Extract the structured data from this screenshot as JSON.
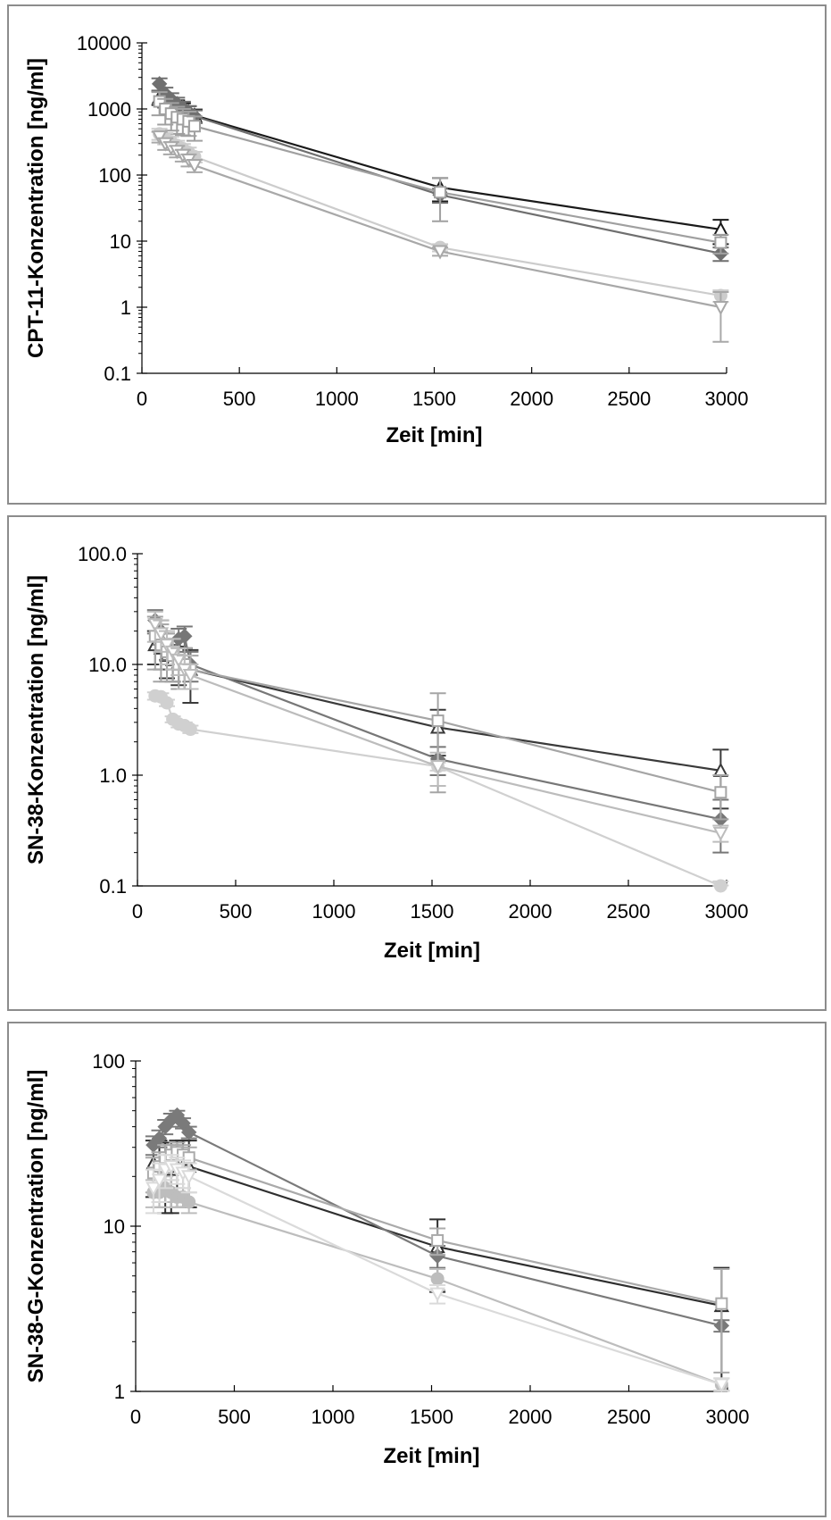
{
  "chart_data": [
    {
      "type": "line",
      "yscale": "log",
      "xlabel": "Zeit [min]",
      "ylabel": "CPT-11-Konzentration [ng/ml]",
      "xlim": [
        0,
        3000
      ],
      "ylim": [
        0.1,
        10000
      ],
      "xticks": [
        "0",
        "500",
        "1000",
        "1500",
        "2000",
        "2500",
        "3000"
      ],
      "yticks": [
        "0.1",
        "1",
        "10",
        "100",
        "1000",
        "10000"
      ],
      "ytick_values": [
        0.1,
        1,
        10,
        100,
        1000,
        10000
      ],
      "grid": false,
      "legend": "none",
      "series": [
        {
          "marker": "triangle",
          "color": "#1a1a1a",
          "x": [
            90,
            120,
            150,
            180,
            210,
            240,
            270,
            1530,
            2970
          ],
          "y": [
            1500,
            1350,
            1200,
            1100,
            1000,
            900,
            800,
            65,
            15
          ],
          "err": [
            350,
            300,
            280,
            250,
            220,
            200,
            180,
            25,
            6
          ]
        },
        {
          "marker": "diamond",
          "color": "#6f6f6f",
          "x": [
            90,
            120,
            150,
            180,
            210,
            240,
            270,
            1530,
            2970
          ],
          "y": [
            2400,
            1700,
            1400,
            1200,
            1050,
            900,
            780,
            50,
            6.5
          ],
          "err": [
            500,
            400,
            330,
            280,
            240,
            200,
            170,
            12,
            1.5
          ]
        },
        {
          "marker": "square",
          "color": "#a0a0a0",
          "x": [
            90,
            120,
            150,
            180,
            210,
            240,
            270,
            1530,
            2970
          ],
          "y": [
            1300,
            1000,
            850,
            750,
            700,
            650,
            550,
            55,
            9.5
          ],
          "err": [
            500,
            420,
            380,
            330,
            300,
            260,
            220,
            35,
            3
          ]
        },
        {
          "marker": "circle",
          "color": "#cccccc",
          "x": [
            90,
            120,
            150,
            180,
            210,
            240,
            270,
            1530,
            2970
          ],
          "y": [
            420,
            360,
            320,
            280,
            250,
            220,
            190,
            8,
            1.5
          ],
          "err": [
            80,
            70,
            60,
            50,
            45,
            40,
            35,
            1,
            0.3
          ]
        },
        {
          "marker": "triangle-down",
          "color": "#a8a8a8",
          "x": [
            90,
            120,
            150,
            180,
            210,
            240,
            270,
            1530,
            2970
          ],
          "y": [
            380,
            300,
            260,
            230,
            200,
            170,
            140,
            7,
            1
          ],
          "err": [
            70,
            60,
            55,
            45,
            40,
            35,
            30,
            1,
            0.7
          ]
        }
      ]
    },
    {
      "type": "line",
      "yscale": "log",
      "xlabel": "Zeit [min]",
      "ylabel": "SN-38-Konzentration [ng/ml]",
      "xlim": [
        0,
        3000
      ],
      "ylim": [
        0.1,
        100
      ],
      "xticks": [
        "0",
        "500",
        "1000",
        "1500",
        "2000",
        "2500",
        "3000"
      ],
      "yticks": [
        "0.1",
        "1.0",
        "10.0",
        "100.0"
      ],
      "ytick_values": [
        0.1,
        1,
        10,
        100
      ],
      "grid": false,
      "legend": "none",
      "series": [
        {
          "marker": "triangle",
          "color": "#3a3a3a",
          "x": [
            90,
            120,
            150,
            180,
            210,
            240,
            270,
            1530,
            2970
          ],
          "y": [
            15,
            14,
            12,
            11,
            10.5,
            10,
            9,
            2.7,
            1.1
          ],
          "err": [
            5,
            5,
            4.5,
            4,
            4,
            4,
            4.5,
            1.2,
            0.6
          ]
        },
        {
          "marker": "diamond",
          "color": "#777777",
          "x": [
            90,
            120,
            150,
            180,
            210,
            240,
            270,
            1530,
            2970
          ],
          "y": [
            25,
            20,
            15,
            13,
            17,
            18,
            10,
            1.4,
            0.4
          ],
          "err": [
            6,
            5,
            4,
            4,
            4,
            4,
            3,
            0.4,
            0.2
          ]
        },
        {
          "marker": "square",
          "color": "#a5a5a5",
          "x": [
            90,
            120,
            150,
            180,
            210,
            240,
            270,
            1530,
            2970
          ],
          "y": [
            18,
            15,
            13,
            12,
            10,
            10,
            9,
            3.1,
            0.7
          ],
          "err": [
            9,
            8,
            6,
            5,
            4,
            4,
            3,
            2.4,
            0.3
          ]
        },
        {
          "marker": "circle",
          "color": "#d0d0d0",
          "x": [
            90,
            120,
            150,
            180,
            210,
            240,
            270,
            1530,
            2970
          ],
          "y": [
            5.2,
            5.1,
            4.5,
            3.2,
            2.9,
            2.8,
            2.6,
            1.2,
            0.1
          ],
          "err": [
            0.4,
            0.4,
            0.3,
            0.2,
            0.2,
            0.2,
            0.2,
            0.1,
            0.01
          ]
        },
        {
          "marker": "triangle-down",
          "color": "#bcbcbc",
          "x": [
            90,
            120,
            150,
            180,
            210,
            240,
            270,
            1530,
            2970
          ],
          "y": [
            23,
            19,
            15,
            13,
            11,
            9,
            8,
            1.2,
            0.3
          ],
          "err": [
            7,
            6,
            5,
            4,
            3,
            3,
            2,
            0.4,
            0.05
          ]
        }
      ]
    },
    {
      "type": "line",
      "yscale": "log",
      "xlabel": "Zeit [min]",
      "ylabel": "SN-38-G-Konzentration [ng/ml]",
      "xlim": [
        0,
        3000
      ],
      "ylim": [
        1,
        100
      ],
      "xticks": [
        "0",
        "500",
        "1000",
        "1500",
        "2000",
        "2500",
        "3000"
      ],
      "yticks": [
        "1",
        "10",
        "100"
      ],
      "ytick_values": [
        1,
        10,
        100
      ],
      "grid": false,
      "legend": "none",
      "series": [
        {
          "marker": "triangle",
          "color": "#2f2f2f",
          "x": [
            90,
            120,
            150,
            180,
            210,
            240,
            270,
            1530,
            2970
          ],
          "y": [
            24,
            23,
            22,
            22,
            23,
            23,
            23,
            7.5,
            3.3
          ],
          "err": [
            9,
            10,
            10,
            10,
            10,
            10,
            10,
            3.5,
            2.3
          ]
        },
        {
          "marker": "diamond",
          "color": "#7a7a7a",
          "x": [
            90,
            120,
            150,
            180,
            210,
            240,
            270,
            1530,
            2970
          ],
          "y": [
            31,
            34,
            40,
            44,
            47,
            42,
            37,
            6.6,
            2.5
          ],
          "err": [
            4,
            4,
            4,
            4,
            3,
            3,
            3,
            1,
            0.2
          ]
        },
        {
          "marker": "square",
          "color": "#aaaaaa",
          "x": [
            90,
            120,
            150,
            180,
            210,
            240,
            270,
            1530,
            2970
          ],
          "y": [
            21,
            23,
            26,
            27,
            28,
            27,
            26,
            8.2,
            3.4
          ],
          "err": [
            5,
            5,
            5,
            4,
            4,
            4,
            4,
            1.5,
            2.1
          ]
        },
        {
          "marker": "circle",
          "color": "#bdbdbd",
          "x": [
            90,
            120,
            150,
            180,
            210,
            240,
            270,
            1530,
            2970
          ],
          "y": [
            16,
            16,
            17,
            16,
            15,
            15,
            14,
            4.8,
            1.1
          ],
          "err": [
            3,
            3,
            3,
            3,
            2,
            2,
            2,
            0.7,
            0.1
          ]
        },
        {
          "marker": "triangle-down",
          "color": "#dadada",
          "x": [
            90,
            120,
            150,
            180,
            210,
            240,
            270,
            1530,
            2970
          ],
          "y": [
            17,
            19,
            22,
            23,
            22,
            21,
            20,
            3.9,
            1.1
          ],
          "err": [
            5,
            5,
            5,
            4,
            4,
            4,
            4,
            0.5,
            0.1
          ]
        }
      ]
    }
  ]
}
